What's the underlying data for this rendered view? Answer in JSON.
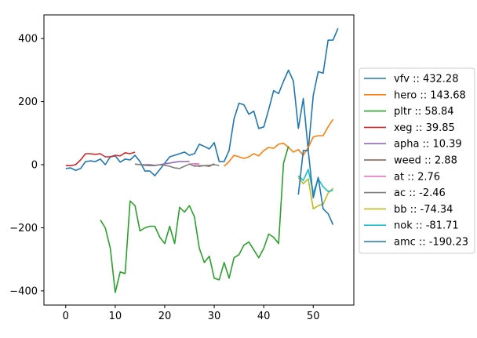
{
  "chart_data": {
    "type": "line",
    "title": "",
    "xlabel": "",
    "ylabel": "",
    "xlim": [
      -4.4,
      58.2
    ],
    "ylim": [
      -445,
      475
    ],
    "xticks": [
      0,
      10,
      20,
      30,
      40,
      50
    ],
    "yticks": [
      -400,
      -200,
      0,
      200,
      400
    ],
    "grid": false,
    "legend_position": "right-outside",
    "series": [
      {
        "name": "vfv :: 432.28",
        "color": "#1f77b4",
        "x": [
          0,
          1,
          2,
          3,
          4,
          5,
          6,
          7,
          8,
          9,
          10,
          11,
          12,
          13,
          14,
          15,
          16,
          17,
          18,
          19,
          20,
          21,
          22,
          23,
          24,
          25,
          26,
          27,
          28,
          29,
          30,
          31,
          32,
          33,
          34,
          35,
          36,
          37,
          38,
          39,
          40,
          41,
          42,
          43,
          44,
          45,
          46,
          47,
          48,
          49,
          50,
          51,
          52,
          53,
          54,
          55
        ],
        "values": [
          -12,
          -10,
          -18,
          -12,
          10,
          12,
          10,
          18,
          0,
          25,
          28,
          8,
          18,
          15,
          30,
          10,
          -20,
          -20,
          -35,
          -15,
          5,
          25,
          30,
          35,
          40,
          30,
          35,
          65,
          58,
          50,
          70,
          10,
          10,
          45,
          145,
          195,
          190,
          160,
          170,
          115,
          120,
          175,
          235,
          225,
          265,
          300,
          265,
          115,
          210,
          45,
          220,
          295,
          290,
          395,
          395,
          432.28
        ]
      },
      {
        "name": "hero :: 143.68",
        "color": "#ff7f0e",
        "x": [
          32,
          33,
          34,
          35,
          36,
          37,
          38,
          39,
          40,
          41,
          42,
          43,
          44,
          45,
          46,
          47,
          48,
          49,
          50,
          51,
          52,
          53,
          54
        ],
        "values": [
          -5,
          10,
          30,
          25,
          20,
          25,
          35,
          28,
          45,
          55,
          52,
          65,
          68,
          55,
          40,
          48,
          30,
          55,
          88,
          92,
          92,
          120,
          143.68
        ]
      },
      {
        "name": "pltr :: 58.84",
        "color": "#2ca02c",
        "x": [
          7,
          8,
          9,
          10,
          11,
          12,
          13,
          14,
          15,
          16,
          17,
          18,
          19,
          20,
          21,
          22,
          23,
          24,
          25,
          26,
          27,
          28,
          29,
          30,
          31,
          32,
          33,
          34,
          35,
          36,
          37,
          38,
          39,
          40,
          41,
          42,
          43,
          44,
          45
        ],
        "values": [
          -175,
          -200,
          -265,
          -405,
          -340,
          -345,
          -115,
          -130,
          -210,
          -200,
          -195,
          -195,
          -230,
          -250,
          -195,
          -250,
          -135,
          -150,
          -130,
          -165,
          -265,
          -310,
          -290,
          -360,
          -365,
          -310,
          -360,
          -295,
          -285,
          -255,
          -245,
          -270,
          -295,
          -265,
          -220,
          -230,
          -250,
          5,
          58.84
        ]
      },
      {
        "name": "xeg :: 39.85",
        "color": "#d62728",
        "x": [
          0,
          1,
          2,
          3,
          4,
          5,
          6,
          7,
          8,
          9,
          10,
          11,
          12,
          13,
          14
        ],
        "values": [
          -3,
          -3,
          0,
          15,
          35,
          35,
          33,
          35,
          25,
          25,
          30,
          28,
          38,
          35,
          39.85
        ]
      },
      {
        "name": "apha :: 10.39",
        "color": "#9467bd",
        "x": [
          14,
          15,
          16,
          17,
          18,
          19,
          20,
          21,
          22,
          23,
          24,
          25
        ],
        "values": [
          2,
          0,
          0,
          0,
          -2,
          0,
          3,
          5,
          8,
          10,
          10,
          10.39
        ]
      },
      {
        "name": "weed :: 2.88",
        "color": "#8c564b",
        "x": [
          26,
          27,
          28,
          29,
          30
        ],
        "values": [
          -3,
          -5,
          -3,
          -5,
          2.88
        ]
      },
      {
        "name": "at :: 2.76",
        "color": "#e377c2",
        "x": [
          25,
          26,
          27
        ],
        "values": [
          2,
          3,
          2.76
        ]
      },
      {
        "name": "ac :: -2.46",
        "color": "#7f7f7f",
        "x": [
          14,
          15,
          16,
          17,
          18,
          19,
          20,
          21,
          22,
          23,
          24,
          25,
          26,
          27,
          28,
          29,
          30,
          31
        ],
        "values": [
          2,
          0,
          -2,
          -3,
          -3,
          0,
          -2,
          -5,
          -10,
          -12,
          -5,
          2,
          -5,
          -3,
          -3,
          -2,
          0,
          -2.46
        ]
      },
      {
        "name": "bb :: -74.34",
        "color": "#bcbd22",
        "x": [
          47,
          48,
          49,
          50,
          51,
          52,
          53,
          54
        ],
        "values": [
          -40,
          -60,
          -45,
          -140,
          -130,
          -125,
          -90,
          -74.34
        ]
      },
      {
        "name": "nok :: -81.71",
        "color": "#17becf",
        "x": [
          47,
          48,
          49,
          50,
          51,
          52,
          53,
          54
        ],
        "values": [
          -35,
          -50,
          -15,
          -90,
          -45,
          -70,
          -85,
          -81.71
        ]
      },
      {
        "name": "amc :: -190.23",
        "color": "#1f77b4",
        "x": [
          47,
          48,
          49,
          50,
          51,
          52,
          53,
          54
        ],
        "values": [
          -95,
          45,
          45,
          -105,
          -40,
          -140,
          -155,
          -190.23
        ]
      }
    ]
  }
}
